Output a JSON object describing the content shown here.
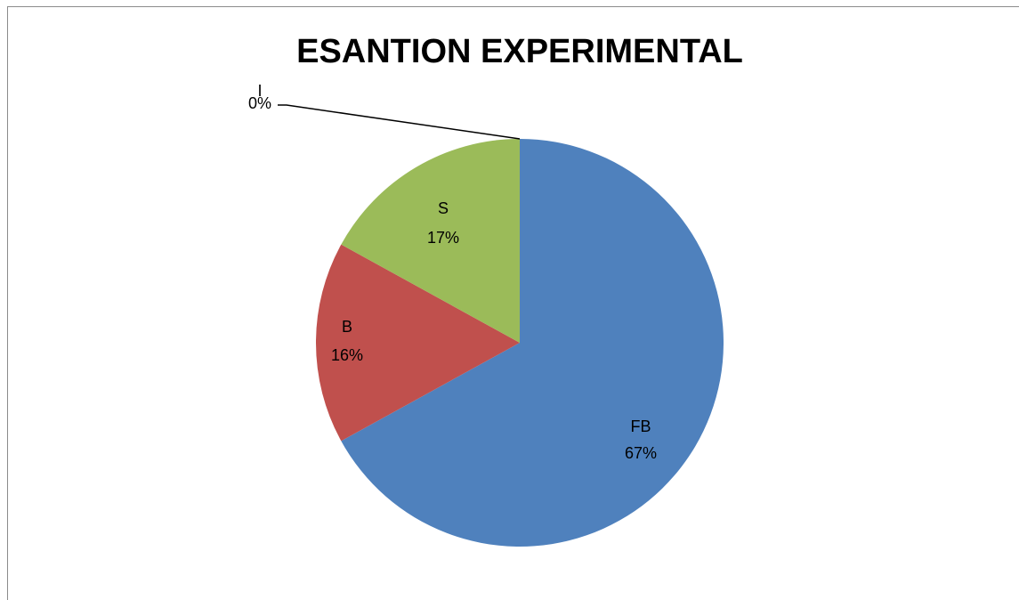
{
  "chart_data": {
    "type": "pie",
    "title": "ESANTION EXPERIMENTAL",
    "categories": [
      "FB",
      "B",
      "S",
      "I"
    ],
    "values": [
      67,
      16,
      17,
      0
    ],
    "value_labels": [
      "67%",
      "16%",
      "17%",
      "0%"
    ],
    "colors": [
      "#4f81bd",
      "#c0504d",
      "#9bbb59",
      "#8064a2"
    ]
  }
}
